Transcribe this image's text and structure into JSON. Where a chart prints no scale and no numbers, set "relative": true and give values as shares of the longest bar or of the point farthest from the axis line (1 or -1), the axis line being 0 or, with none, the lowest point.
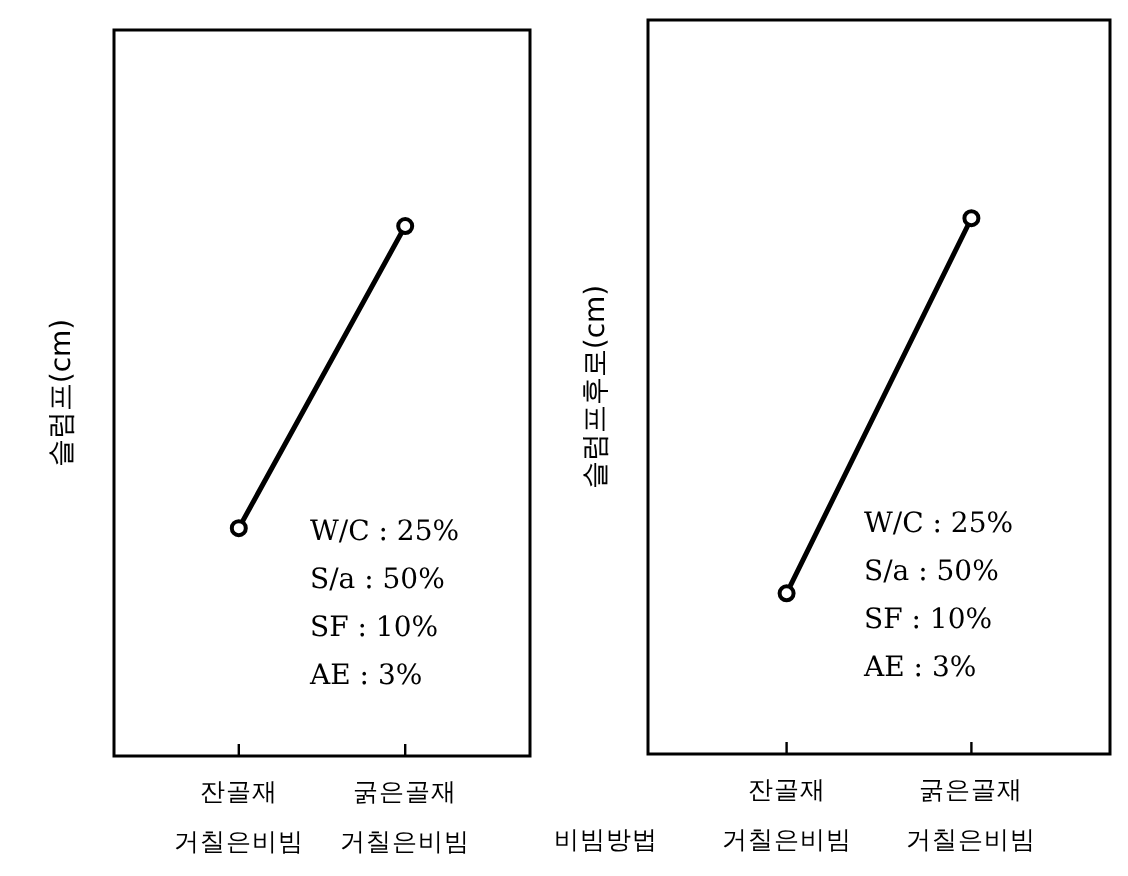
{
  "chart_data": [
    {
      "type": "line",
      "ylabel": "슬럼프(cm)",
      "categories": [
        "잔골재\n거칠은비빔",
        "굵은골재\n거칠은비빔"
      ],
      "relative": true,
      "marker": "circle",
      "line_style": "solid",
      "grid": false,
      "series": [
        {
          "color": "#000000",
          "values": [
            0.43,
            1
          ]
        }
      ],
      "annotations": [
        "W/C : 25%",
        "S/a : 50%",
        "SF : 10%",
        "AE : 3%"
      ]
    },
    {
      "type": "line",
      "ylabel": "슬럼프후로(cm)",
      "xlabel": "비빔방법",
      "categories": [
        "잔골재\n거칠은비빔",
        "굵은골재\n거칠은비빔"
      ],
      "relative": true,
      "marker": "circle",
      "line_style": "solid",
      "grid": false,
      "series": [
        {
          "color": "#000000",
          "values": [
            0.3,
            1
          ]
        }
      ],
      "annotations": [
        "W/C : 25%",
        "S/a : 50%",
        "SF : 10%",
        "AE : 3%"
      ]
    }
  ]
}
